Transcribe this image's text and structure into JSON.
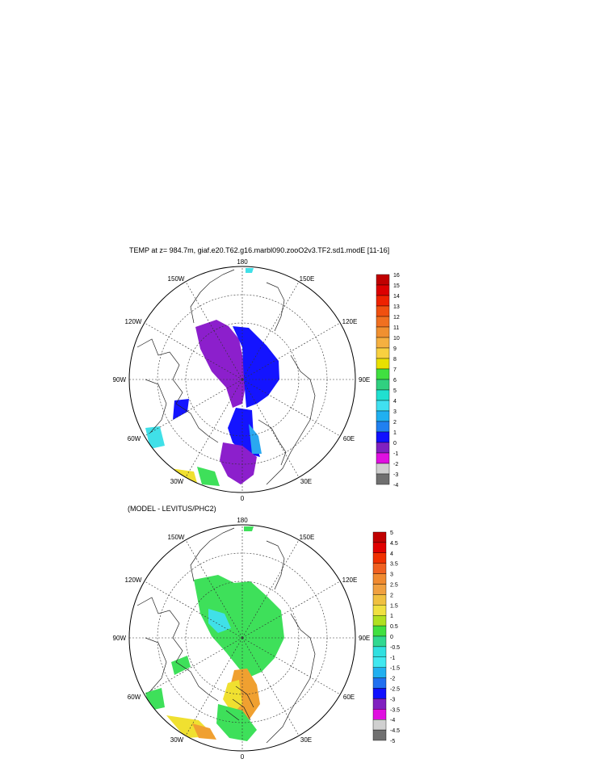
{
  "figure": {
    "title": "TEMP at z= 984.7m, giaf.e20.T62.g16.marbl090.zooO2v3.TF2.sd1.modE [11-16]",
    "diff_title": "(MODEL - LEVITUS/PHC2)"
  },
  "longitude_labels": {
    "top": "180",
    "bottom": "0",
    "left": "90W",
    "right": "90E",
    "upper_left_outer": "150W",
    "upper_right_outer": "150E",
    "upper_left": "120W",
    "upper_right": "120E",
    "lower_left": "60W",
    "lower_right": "60E",
    "lower_left_outer": "30W",
    "lower_right_outer": "30E"
  },
  "legend_top": {
    "labels": [
      "16",
      "15",
      "14",
      "13",
      "12",
      "11",
      "10",
      "9",
      "8",
      "7",
      "6",
      "5",
      "4",
      "3",
      "2",
      "1",
      "0",
      "-1",
      "-2",
      "-3",
      "-4"
    ],
    "colors": [
      "#c00000",
      "#dc0000",
      "#ee2200",
      "#f05010",
      "#f07020",
      "#f09030",
      "#f5b040",
      "#f8d040",
      "#e8e000",
      "#40e040",
      "#30d080",
      "#20e0d0",
      "#40e0f0",
      "#20b0f0",
      "#2080f0",
      "#1010ff",
      "#8020c0",
      "#e010e0",
      "#d0d0d0",
      "#707070"
    ]
  },
  "legend_bottom": {
    "labels": [
      "5",
      "4.5",
      "4",
      "3.5",
      "3",
      "2.5",
      "2",
      "1.5",
      "1",
      "0.5",
      "0",
      "-0.5",
      "-1",
      "-1.5",
      "-2",
      "-2.5",
      "-3",
      "-3.5",
      "-4",
      "-4.5",
      "-5"
    ],
    "colors": [
      "#c00000",
      "#e00000",
      "#f03000",
      "#f06020",
      "#f08a30",
      "#f0a040",
      "#f0c040",
      "#f0e040",
      "#b0e020",
      "#40e040",
      "#30d890",
      "#30e0e0",
      "#40e8f0",
      "#20b0f0",
      "#2070f0",
      "#1010ff",
      "#8020c0",
      "#e010e0",
      "#d0d0d0",
      "#707070"
    ]
  },
  "colors": {
    "purple": "#8c1fcc",
    "blue": "#1414ff",
    "green": "#3ee05a",
    "cyan": "#40e0e8",
    "orange": "#f0a030",
    "yellow": "#f0e030",
    "sky": "#2aa8f0"
  }
}
